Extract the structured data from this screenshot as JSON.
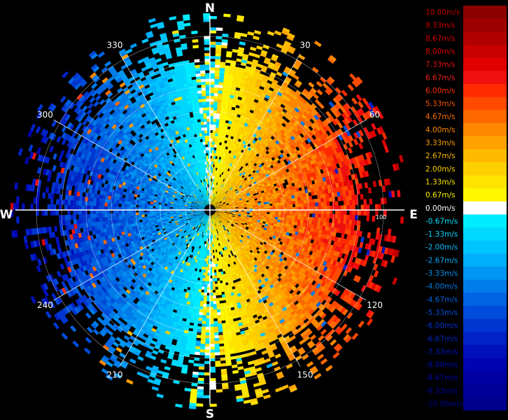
{
  "compass": {
    "north": "N",
    "south": "S",
    "east": "E",
    "west": "W"
  },
  "azimuth_labels": [
    {
      "name": "azimuth-label-30",
      "text": "30",
      "deg": 30
    },
    {
      "name": "azimuth-label-60",
      "text": "60",
      "deg": 60
    },
    {
      "name": "azimuth-label-120",
      "text": "120",
      "deg": 120
    },
    {
      "name": "azimuth-label-150",
      "text": "150",
      "deg": 150
    },
    {
      "name": "azimuth-label-210",
      "text": "210",
      "deg": 210
    },
    {
      "name": "azimuth-label-240",
      "text": "240",
      "deg": 240
    },
    {
      "name": "azimuth-label-300",
      "text": "300",
      "deg": 300
    },
    {
      "name": "azimuth-label-330",
      "text": "330",
      "deg": 330
    }
  ],
  "range_label": "100",
  "legend": [
    {
      "label": "10.00m/s",
      "color": "#8b0000",
      "text_color": "#c00000"
    },
    {
      "label": "9.33m/s",
      "color": "#9c0000",
      "text_color": "#cc0000"
    },
    {
      "label": "8.67m/s",
      "color": "#b00000",
      "text_color": "#d80000"
    },
    {
      "label": "8.00m/s",
      "color": "#c80000",
      "text_color": "#e00000"
    },
    {
      "label": "7.33m/s",
      "color": "#e00000",
      "text_color": "#ee1010"
    },
    {
      "label": "6.67m/s",
      "color": "#f01010",
      "text_color": "#f02020"
    },
    {
      "label": "6.00m/s",
      "color": "#ff2a00",
      "text_color": "#ff3300"
    },
    {
      "label": "5.33m/s",
      "color": "#ff4a00",
      "text_color": "#ff5500"
    },
    {
      "label": "4.67m/s",
      "color": "#ff6a00",
      "text_color": "#ff7000"
    },
    {
      "label": "4.00m/s",
      "color": "#ff8800",
      "text_color": "#ff8a00"
    },
    {
      "label": "3.33m/s",
      "color": "#ffa200",
      "text_color": "#ffa200"
    },
    {
      "label": "2.67m/s",
      "color": "#ffba00",
      "text_color": "#ffba00"
    },
    {
      "label": "2.00m/s",
      "color": "#ffd000",
      "text_color": "#ffd000"
    },
    {
      "label": "1.33m/s",
      "color": "#ffe400",
      "text_color": "#ffe400"
    },
    {
      "label": "0.67m/s",
      "color": "#fff600",
      "text_color": "#fff200"
    },
    {
      "label": "0.00m/s",
      "color": "#ffffff",
      "text_color": "#ffffff"
    },
    {
      "label": "-0.67m/s",
      "color": "#00ecff",
      "text_color": "#00e6ff"
    },
    {
      "label": "-1.33m/s",
      "color": "#00d8ff",
      "text_color": "#00d4ff"
    },
    {
      "label": "-2.00m/s",
      "color": "#00c4ff",
      "text_color": "#00c0ff"
    },
    {
      "label": "-2.67m/s",
      "color": "#00aefa",
      "text_color": "#00aaf8"
    },
    {
      "label": "-3.33m/s",
      "color": "#0096f2",
      "text_color": "#0094f0"
    },
    {
      "label": "-4.00m/s",
      "color": "#007cea",
      "text_color": "#007ce8"
    },
    {
      "label": "-4.67m/s",
      "color": "#0064e2",
      "text_color": "#0064e0"
    },
    {
      "label": "-5.33m/s",
      "color": "#004cda",
      "text_color": "#004cd8"
    },
    {
      "label": "-6.00m/s",
      "color": "#0036d0",
      "text_color": "#0036d0"
    },
    {
      "label": "-6.67m/s",
      "color": "#0022c6",
      "text_color": "#0026c8"
    },
    {
      "label": "-7.33m/s",
      "color": "#0010bc",
      "text_color": "#0018c0"
    },
    {
      "label": "-8.00m/s",
      "color": "#0004b0",
      "text_color": "#000cb4"
    },
    {
      "label": "-8.67m/s",
      "color": "#0000a2",
      "text_color": "#0008a8"
    },
    {
      "label": "-9.33m/s",
      "color": "#000096",
      "text_color": "#00069c"
    },
    {
      "label": "-10.00m/s",
      "color": "#00008a",
      "text_color": "#000490"
    }
  ],
  "colors": {
    "background": "#000000",
    "grid": "#ffffff",
    "receding_core": "#f2b814",
    "receding_outer": "#ef7a12",
    "approaching_core": "#22a8e8",
    "approaching_outer": "#1a8ee0"
  }
}
